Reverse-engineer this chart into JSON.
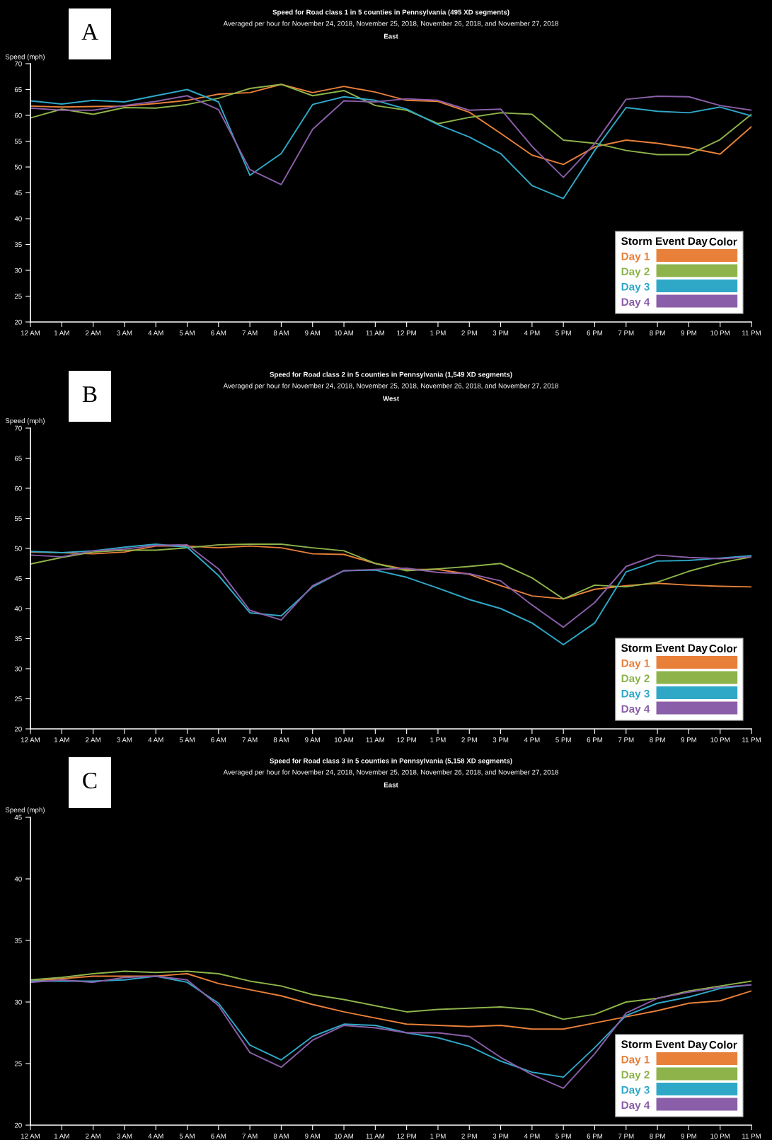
{
  "chart_data": [
    {
      "type": "line",
      "title": "Speed for Road class 1 in 5 counties in Pennsylvania (495 XD segments)",
      "subtitle": "Averaged per hour for November 24, 2018, November 25, 2018, November 26, 2018, and November 27, 2018",
      "ylabel": "Speed (mph)",
      "legend_title": "Storm Event Day",
      "annotations": [
        "A",
        "East",
        "Color"
      ],
      "categories": [
        "12 AM",
        "1 AM",
        "2 AM",
        "3 AM",
        "4 AM",
        "5 AM",
        "6 AM",
        "7 AM",
        "8 AM",
        "9 AM",
        "10 AM",
        "11 AM",
        "12 PM",
        "1 PM",
        "2 PM",
        "3 PM",
        "4 PM",
        "5 PM",
        "6 PM",
        "7 PM",
        "8 PM",
        "9 PM",
        "10 PM",
        "11 PM"
      ],
      "ylim": [
        20,
        70
      ],
      "yticks": [
        20,
        25,
        30,
        35,
        40,
        45,
        50,
        55,
        60,
        65,
        70
      ],
      "grid": false,
      "legend": "bottom right",
      "series": [
        {
          "name": "Day 1",
          "color": "#e8803a",
          "values": [
            61.8,
            61.6,
            61.7,
            61.8,
            62.3,
            62.9,
            64.1,
            64.4,
            66.0,
            64.4,
            65.6,
            64.5,
            62.9,
            62.7,
            60.6,
            56.5,
            52.3,
            50.5,
            53.9,
            55.2,
            54.6,
            53.7,
            52.5,
            57.8
          ]
        },
        {
          "name": "Day 2",
          "color": "#8db34a",
          "values": [
            59.5,
            61.2,
            60.2,
            61.5,
            61.4,
            62.1,
            63.3,
            65.2,
            66.0,
            63.8,
            64.8,
            61.9,
            61.0,
            58.4,
            59.6,
            60.5,
            60.2,
            55.2,
            54.6,
            53.2,
            52.4,
            52.4,
            55.3,
            60.2
          ]
        },
        {
          "name": "Day 3",
          "color": "#2fa8c8",
          "values": [
            62.8,
            62.2,
            62.9,
            62.6,
            63.8,
            65.0,
            62.6,
            48.4,
            52.6,
            62.1,
            63.6,
            62.9,
            61.2,
            58.2,
            55.8,
            52.6,
            46.4,
            43.9,
            53.2,
            61.5,
            60.8,
            60.5,
            61.6,
            59.9
          ]
        },
        {
          "name": "Day 4",
          "color": "#8a5ea8",
          "values": [
            61.4,
            61.0,
            61.0,
            61.9,
            62.7,
            63.8,
            61.1,
            49.5,
            46.6,
            57.3,
            62.8,
            62.6,
            63.2,
            62.9,
            61.0,
            61.2,
            54.0,
            48.0,
            54.5,
            63.1,
            63.7,
            63.6,
            61.9,
            61.0
          ]
        }
      ]
    },
    {
      "type": "line",
      "title": "Speed for Road class 2 in 5 counties in Pennsylvania (1,549 XD segments)",
      "subtitle": "Averaged per hour for November 24, 2018, November 25, 2018, November 26, 2018, and November 27, 2018",
      "ylabel": "Speed (mph)",
      "legend_title": "Storm Event Day",
      "annotations": [
        "B",
        "West",
        "Color"
      ],
      "categories": [
        "12 AM",
        "1 AM",
        "2 AM",
        "3 AM",
        "4 AM",
        "5 AM",
        "6 AM",
        "7 AM",
        "8 AM",
        "9 AM",
        "10 AM",
        "11 AM",
        "12 PM",
        "1 PM",
        "2 PM",
        "3 PM",
        "4 PM",
        "5 PM",
        "6 PM",
        "7 PM",
        "8 PM",
        "9 PM",
        "10 PM",
        "11 PM"
      ],
      "ylim": [
        20,
        70
      ],
      "yticks": [
        20,
        25,
        30,
        35,
        40,
        45,
        50,
        55,
        60,
        65,
        70
      ],
      "grid": false,
      "legend": "bottom right",
      "series": [
        {
          "name": "Day 1",
          "color": "#e8803a",
          "values": [
            49.4,
            49.3,
            49.1,
            49.4,
            50.4,
            50.4,
            50.1,
            50.4,
            50.1,
            49.1,
            49.0,
            47.5,
            46.5,
            46.5,
            45.7,
            43.8,
            42.1,
            41.6,
            43.2,
            43.8,
            44.2,
            43.9,
            43.7,
            43.6
          ]
        },
        {
          "name": "Day 2",
          "color": "#8db34a",
          "values": [
            47.4,
            48.5,
            49.4,
            49.7,
            49.7,
            50.1,
            50.6,
            50.7,
            50.7,
            50.1,
            49.6,
            47.5,
            46.3,
            46.6,
            47.0,
            47.5,
            45.1,
            41.6,
            43.9,
            43.6,
            44.4,
            46.2,
            47.6,
            48.6
          ]
        },
        {
          "name": "Day 3",
          "color": "#2fa8c8",
          "values": [
            49.5,
            49.3,
            49.6,
            50.2,
            50.7,
            50.2,
            45.5,
            39.3,
            38.8,
            43.6,
            46.3,
            46.4,
            45.2,
            43.4,
            41.5,
            40.0,
            37.6,
            34.0,
            37.6,
            46.1,
            47.9,
            48.0,
            48.4,
            48.8
          ]
        },
        {
          "name": "Day 4",
          "color": "#8a5ea8",
          "values": [
            48.9,
            48.6,
            49.6,
            49.9,
            50.5,
            50.6,
            46.6,
            39.7,
            38.1,
            43.8,
            46.3,
            46.5,
            46.7,
            46.0,
            45.8,
            44.6,
            40.6,
            36.9,
            41.0,
            47.0,
            48.9,
            48.5,
            48.3,
            48.6
          ]
        }
      ]
    },
    {
      "type": "line",
      "title": "Speed for Road class 3 in 5 counties in Pennsylvania (5,158 XD segments)",
      "subtitle": "Averaged per hour for November 24, 2018, November 25, 2018, November 26, 2018, and November 27, 2018",
      "ylabel": "Speed (mph)",
      "legend_title": "Storm Event Day",
      "annotations": [
        "C",
        "East",
        "Color"
      ],
      "categories": [
        "12 AM",
        "1 AM",
        "2 AM",
        "3 AM",
        "4 AM",
        "5 AM",
        "6 AM",
        "7 AM",
        "8 AM",
        "9 AM",
        "10 AM",
        "11 AM",
        "12 PM",
        "1 PM",
        "2 PM",
        "3 PM",
        "4 PM",
        "5 PM",
        "6 PM",
        "7 PM",
        "8 PM",
        "9 PM",
        "10 PM",
        "11 PM"
      ],
      "ylim": [
        20,
        45
      ],
      "yticks": [
        20,
        25,
        30,
        35,
        40,
        45
      ],
      "grid": false,
      "legend": "bottom right",
      "series": [
        {
          "name": "Day 1",
          "color": "#e8803a",
          "values": [
            31.7,
            31.9,
            32.1,
            32.1,
            32.1,
            32.3,
            31.5,
            31.0,
            30.5,
            29.8,
            29.2,
            28.7,
            28.2,
            28.1,
            28.0,
            28.1,
            27.8,
            27.8,
            28.3,
            28.8,
            29.3,
            29.9,
            30.1,
            30.9
          ]
        },
        {
          "name": "Day 2",
          "color": "#8db34a",
          "values": [
            31.8,
            32.0,
            32.3,
            32.5,
            32.4,
            32.5,
            32.3,
            31.7,
            31.3,
            30.6,
            30.2,
            29.7,
            29.2,
            29.4,
            29.5,
            29.6,
            29.4,
            28.6,
            29.0,
            30.0,
            30.3,
            30.9,
            31.3,
            31.7
          ]
        },
        {
          "name": "Day 3",
          "color": "#2fa8c8",
          "values": [
            31.7,
            31.7,
            31.7,
            31.8,
            32.1,
            31.6,
            29.9,
            26.5,
            25.3,
            27.2,
            28.2,
            28.1,
            27.5,
            27.1,
            26.4,
            25.2,
            24.3,
            23.9,
            26.3,
            28.9,
            29.9,
            30.4,
            31.1,
            31.4
          ]
        },
        {
          "name": "Day 4",
          "color": "#8a5ea8",
          "values": [
            31.6,
            31.8,
            31.6,
            32.0,
            32.1,
            31.8,
            29.7,
            25.9,
            24.7,
            26.9,
            28.1,
            27.9,
            27.5,
            27.5,
            27.2,
            25.5,
            24.1,
            23.0,
            25.8,
            29.1,
            30.3,
            30.8,
            31.2,
            31.4
          ]
        }
      ]
    }
  ]
}
